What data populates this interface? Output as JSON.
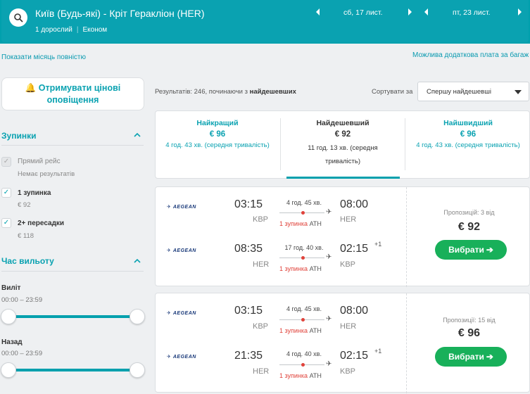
{
  "header": {
    "route": "Київ (Будь-які) - Кріт Геракліон (HER)",
    "passengers": "1 дорослий",
    "class": "Економ",
    "depart_date": "сб, 17 лист.",
    "return_date": "пт, 23 лист."
  },
  "links": {
    "show_month": "Показати місяць повністю",
    "extra_fee": "Можлива додаткова плата за багаж"
  },
  "sidebar": {
    "alerts_label": "Отримувати цінові оповіщення",
    "stops_title": "Зупинки",
    "stops": [
      {
        "label": "Прямий рейс",
        "sub": "Немає результатів",
        "checked": true,
        "disabled": true
      },
      {
        "label": "1 зупинка",
        "sub": "€ 92",
        "checked": true,
        "disabled": false
      },
      {
        "label": "2+ пересадки",
        "sub": "€ 118",
        "checked": true,
        "disabled": false
      }
    ],
    "departure_title": "Час вильоту",
    "outbound_label": "Виліт",
    "outbound_range": "00:00 – 23:59",
    "return_label": "Назад",
    "return_range": "00:00 – 23:59"
  },
  "results": {
    "count_prefix": "Результатів: 246, починаючи з ",
    "count_bold": "найдешевших",
    "sort_label": "Сортувати за",
    "sort_value": "Спершу найдешевші"
  },
  "tabs": [
    {
      "title": "Найкращий",
      "price": "€ 96",
      "duration": "4 год. 43 хв. (середня тривалість)"
    },
    {
      "title": "Найдешевший",
      "price": "€ 92",
      "duration": "11 год. 13 хв. (середня тривалість)"
    },
    {
      "title": "Найшвидший",
      "price": "€ 96",
      "duration": "4 год. 43 хв. (середня тривалість)"
    }
  ],
  "cards": [
    {
      "offers": "Пропозицій: 3 від",
      "price": "€ 92",
      "button": "Вибрати",
      "legs": [
        {
          "airline": "AEGEAN",
          "dep_time": "03:15",
          "dep_code": "KBP",
          "duration": "4 год. 45 хв.",
          "stop": "1 зупинка",
          "via": "ATH",
          "arr_time": "08:00",
          "arr_code": "HER",
          "plus": ""
        },
        {
          "airline": "AEGEAN",
          "dep_time": "08:35",
          "dep_code": "HER",
          "duration": "17 год. 40 хв.",
          "stop": "1 зупинка",
          "via": "ATH",
          "arr_time": "02:15",
          "arr_code": "KBP",
          "plus": "+1"
        }
      ]
    },
    {
      "offers": "Пропозиції: 15 від",
      "price": "€ 96",
      "button": "Вибрати",
      "legs": [
        {
          "airline": "AEGEAN",
          "dep_time": "03:15",
          "dep_code": "KBP",
          "duration": "4 год. 45 хв.",
          "stop": "1 зупинка",
          "via": "ATH",
          "arr_time": "08:00",
          "arr_code": "HER",
          "plus": ""
        },
        {
          "airline": "AEGEAN",
          "dep_time": "21:35",
          "dep_code": "HER",
          "duration": "4 год. 40 хв.",
          "stop": "1 зупинка",
          "via": "ATH",
          "arr_time": "02:15",
          "arr_code": "KBP",
          "plus": "+1"
        }
      ]
    }
  ],
  "colors": {
    "brand": "#00a0ad",
    "cta": "#18b05a",
    "stop": "#e0433b"
  }
}
